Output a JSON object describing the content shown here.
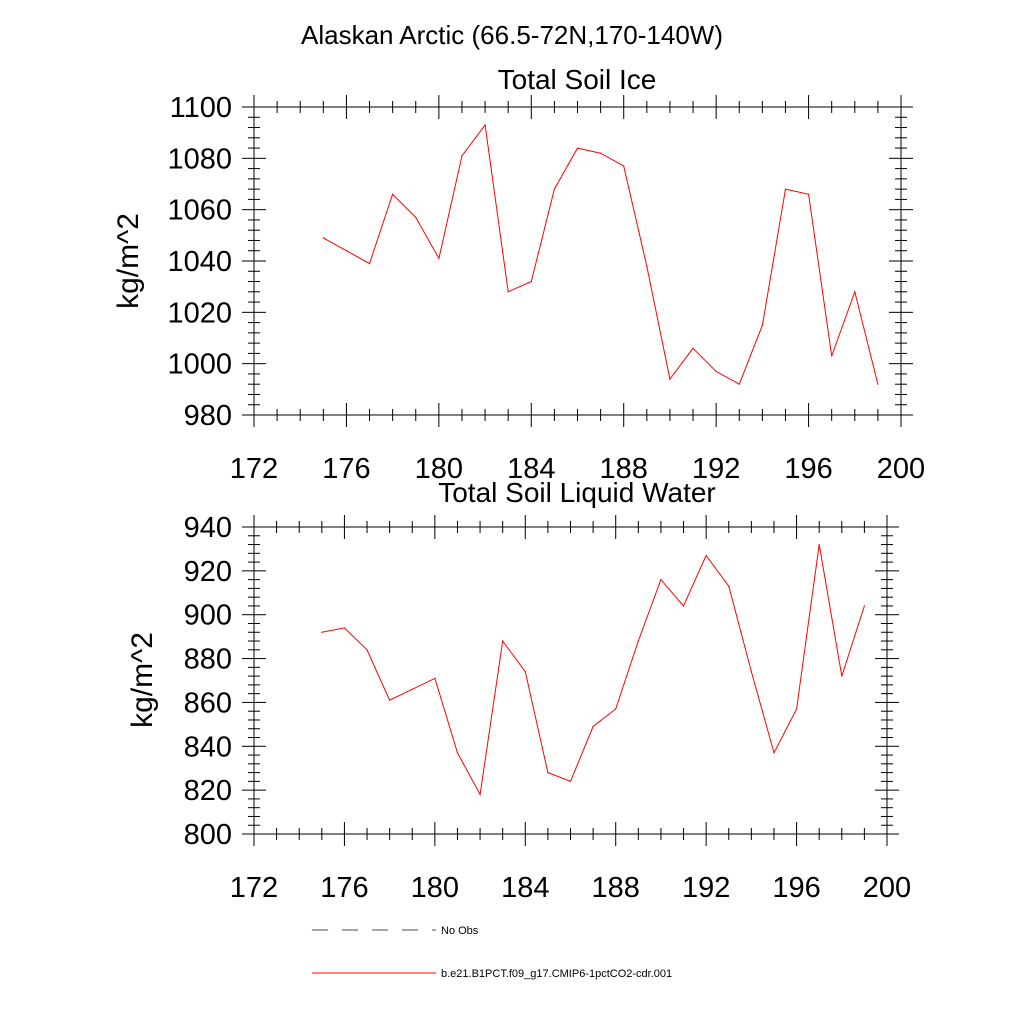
{
  "figure_title": "Alaskan Arctic (66.5-72N,170-140W)",
  "legend": [
    {
      "label": "No Obs",
      "style": "dashed",
      "color": "#4a4a6a"
    },
    {
      "label": "b.e21.B1PCT.f09_g17.CMIP6-1pctCO2-cdr.001",
      "style": "solid",
      "color": "#ff0000"
    }
  ],
  "chart_data": [
    {
      "type": "line",
      "title": "Total Soil Ice",
      "ylabel": "kg/m^2",
      "xlabel": "",
      "xlim": [
        172,
        200
      ],
      "ylim": [
        980,
        1100
      ],
      "xticks": [
        172,
        176,
        180,
        184,
        188,
        192,
        196,
        200
      ],
      "yticks": [
        980,
        1000,
        1020,
        1040,
        1060,
        1080,
        1100
      ],
      "x": [
        175,
        176,
        177,
        178,
        179,
        180,
        181,
        182,
        183,
        184,
        185,
        186,
        187,
        188,
        189,
        190,
        191,
        192,
        193,
        194,
        195,
        196,
        197,
        198,
        199
      ],
      "series": [
        {
          "color": "#ff0000",
          "values": [
            1049,
            1044,
            1039,
            1066,
            1057,
            1041,
            1081,
            1093,
            1028,
            1032,
            1068,
            1084,
            1082,
            1077,
            1038,
            994,
            1006,
            997,
            992,
            1015,
            1068,
            1066,
            1003,
            1028,
            992
          ]
        }
      ]
    },
    {
      "type": "line",
      "title": "Total Soil Liquid Water",
      "ylabel": "kg/m^2",
      "xlabel": "",
      "xlim": [
        172,
        200
      ],
      "ylim": [
        800,
        940
      ],
      "xticks": [
        172,
        176,
        180,
        184,
        188,
        192,
        196,
        200
      ],
      "yticks": [
        800,
        820,
        840,
        860,
        880,
        900,
        920,
        940
      ],
      "x": [
        175,
        176,
        177,
        178,
        179,
        180,
        181,
        182,
        183,
        184,
        185,
        186,
        187,
        188,
        189,
        190,
        191,
        192,
        193,
        194,
        195,
        196,
        197,
        198,
        199
      ],
      "series": [
        {
          "color": "#ff0000",
          "values": [
            892,
            894,
            884,
            861,
            866,
            871,
            837,
            818,
            888,
            874,
            828,
            824,
            849,
            857,
            888,
            916,
            904,
            927,
            913,
            874,
            837,
            857,
            932,
            872,
            904
          ]
        }
      ]
    }
  ]
}
